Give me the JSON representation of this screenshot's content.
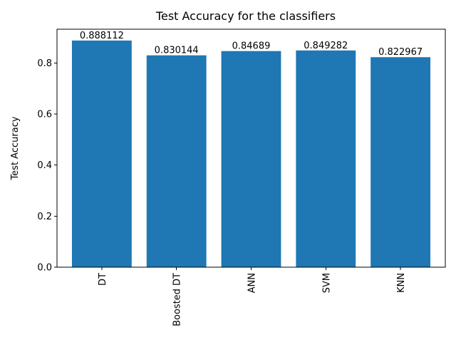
{
  "chart_data": {
    "type": "bar",
    "title": "Test Accuracy for the classifiers",
    "xlabel": "",
    "ylabel": "Test Accuracy",
    "categories": [
      "DT",
      "Boosted DT",
      "ANN",
      "SVM",
      "KNN"
    ],
    "values": [
      0.888112,
      0.830144,
      0.84689,
      0.849282,
      0.822967
    ],
    "data_labels": [
      "0.888112",
      "0.830144",
      "0.84689",
      "0.849282",
      "0.822967"
    ],
    "ylim": [
      0,
      0.9325
    ],
    "yticks": [
      0.0,
      0.2,
      0.4,
      0.6,
      0.8
    ],
    "ytick_labels": [
      "0.0",
      "0.2",
      "0.4",
      "0.6",
      "0.8"
    ],
    "x_tick_rotation": "vertical",
    "grid": false,
    "legend": "none",
    "colors": {
      "bar": "#1f77b4"
    }
  }
}
